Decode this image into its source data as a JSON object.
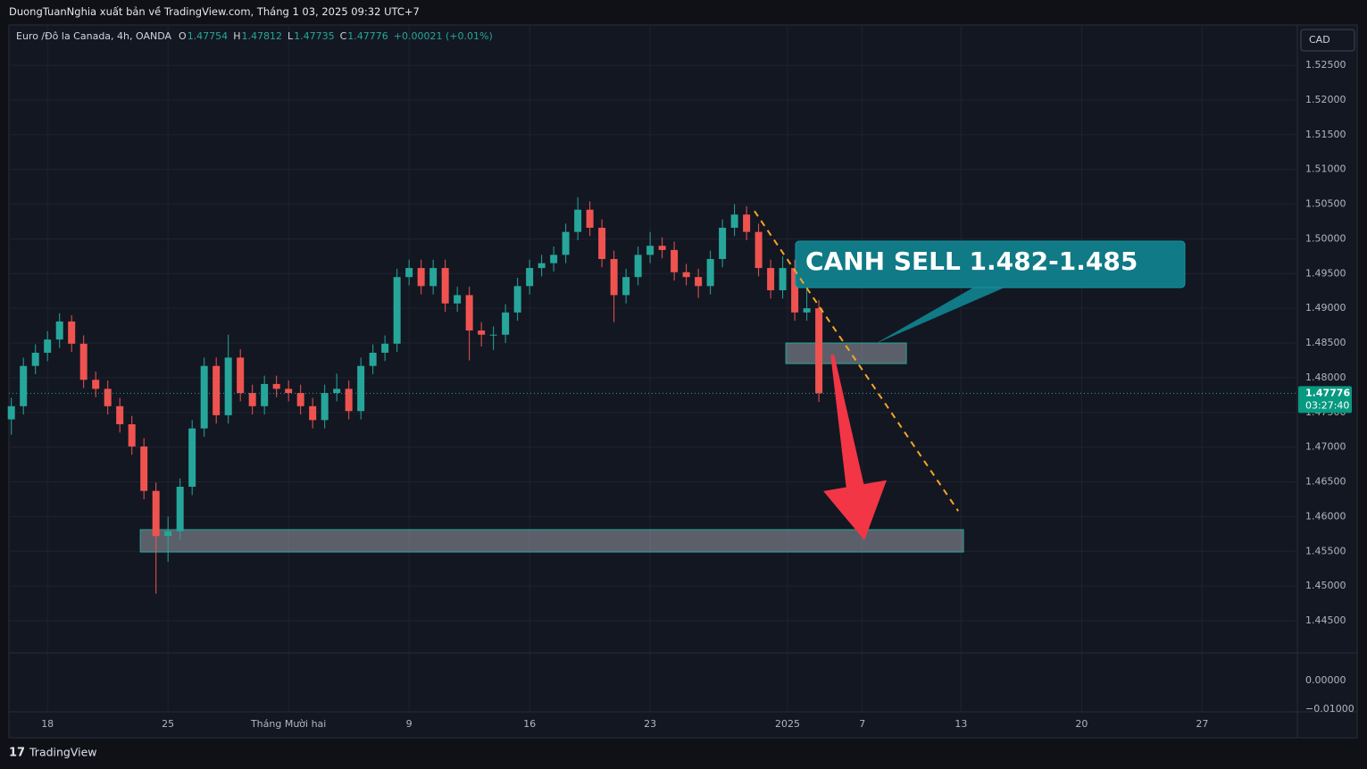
{
  "header": {
    "text": "DuongTuanNghia xuất bản về TradingView.com, Tháng 1 03, 2025 09:32 UTC+7"
  },
  "footer": {
    "brand": "TradingView"
  },
  "chart_data": {
    "type": "candlestick",
    "symbol": "Euro /Đô la Canada, 4h, OANDA",
    "ohlc_legend": [
      {
        "key": "O",
        "value": "1.47754"
      },
      {
        "key": "H",
        "value": "1.47812"
      },
      {
        "key": "L",
        "value": "1.47735"
      },
      {
        "key": "C",
        "value": "1.47776"
      }
    ],
    "change": "+0.00021 (+0.01%)",
    "currency": "CAD",
    "up_color": "#26a69a",
    "down_color": "#ef5350",
    "x": [
      -1.5,
      -1,
      -0.5,
      0,
      0.5,
      1,
      1.5,
      2,
      2.5,
      3,
      3.5,
      4,
      4.5,
      5,
      5.5,
      6,
      6.5,
      7,
      7.5,
      8,
      8.5,
      9,
      9.5,
      10,
      10.5,
      11,
      11.5,
      12,
      12.5,
      13,
      13.5,
      14,
      14.5,
      15,
      15.5,
      16,
      16.5,
      17,
      17.5,
      18,
      18.5,
      19,
      19.5,
      20,
      20.5,
      21,
      21.5,
      22,
      22.5,
      23,
      23.5,
      24,
      24.5,
      25,
      25.5,
      26,
      26.5,
      27,
      27.5,
      28,
      28.5,
      29,
      29.5,
      30,
      30.5,
      31,
      31.5,
      32
    ],
    "open": [
      1.474,
      1.4759,
      1.4817,
      1.4836,
      1.4855,
      1.4881,
      1.4849,
      1.4797,
      1.4784,
      1.4759,
      1.4733,
      1.4701,
      1.4637,
      1.4572,
      1.4579,
      1.4643,
      1.4727,
      1.4817,
      1.4746,
      1.4829,
      1.4778,
      1.4759,
      1.4791,
      1.4784,
      1.4778,
      1.4759,
      1.4739,
      1.4778,
      1.4784,
      1.4752,
      1.4817,
      1.4836,
      1.4849,
      1.4945,
      1.4958,
      1.4932,
      1.4958,
      1.4907,
      1.4919,
      1.4868,
      1.4862,
      1.4862,
      1.4894,
      1.4932,
      1.4958,
      1.4965,
      1.4977,
      1.501,
      1.5042,
      1.5016,
      1.4971,
      1.4919,
      1.4945,
      1.4977,
      1.499,
      1.4984,
      1.4952,
      1.4945,
      1.4932,
      1.4971,
      1.5016,
      1.5035,
      1.501,
      1.4958,
      1.4926,
      1.4958,
      1.4894,
      1.49
    ],
    "high": [
      1.4771,
      1.4829,
      1.4848,
      1.4867,
      1.4893,
      1.489,
      1.4861,
      1.4809,
      1.4796,
      1.4771,
      1.4745,
      1.4713,
      1.4649,
      1.46,
      1.4655,
      1.4739,
      1.4829,
      1.4829,
      1.4862,
      1.4841,
      1.479,
      1.4803,
      1.4803,
      1.4796,
      1.479,
      1.4771,
      1.479,
      1.4806,
      1.4796,
      1.4829,
      1.4848,
      1.4861,
      1.4957,
      1.497,
      1.497,
      1.497,
      1.497,
      1.4931,
      1.4931,
      1.488,
      1.4874,
      1.4906,
      1.4944,
      1.497,
      1.4977,
      1.4989,
      1.5022,
      1.506,
      1.5054,
      1.5028,
      1.4983,
      1.4957,
      1.4989,
      1.501,
      1.5002,
      1.4996,
      1.4964,
      1.4957,
      1.4983,
      1.5028,
      1.505,
      1.5047,
      1.5022,
      1.497,
      1.4975,
      1.497,
      1.4935,
      1.4912
    ],
    "low": [
      1.4718,
      1.4747,
      1.4805,
      1.4824,
      1.4843,
      1.4837,
      1.4785,
      1.4772,
      1.4747,
      1.4721,
      1.4689,
      1.4625,
      1.4489,
      1.4535,
      1.4567,
      1.4631,
      1.4715,
      1.4734,
      1.4734,
      1.4766,
      1.4747,
      1.4747,
      1.4772,
      1.4766,
      1.4747,
      1.4727,
      1.4727,
      1.4766,
      1.474,
      1.474,
      1.4805,
      1.4824,
      1.4837,
      1.4933,
      1.492,
      1.492,
      1.4895,
      1.4895,
      1.4825,
      1.4845,
      1.484,
      1.485,
      1.4882,
      1.492,
      1.4946,
      1.4953,
      1.4965,
      1.4998,
      1.5004,
      1.4959,
      1.488,
      1.4907,
      1.4933,
      1.4965,
      1.4972,
      1.494,
      1.4933,
      1.4915,
      1.492,
      1.4959,
      1.5004,
      1.4998,
      1.4946,
      1.4914,
      1.4914,
      1.4882,
      1.4882,
      1.4765
    ],
    "close": [
      1.4759,
      1.4817,
      1.4836,
      1.4855,
      1.4881,
      1.4849,
      1.4797,
      1.4784,
      1.4759,
      1.4733,
      1.4701,
      1.4637,
      1.4572,
      1.4579,
      1.4643,
      1.4727,
      1.4817,
      1.4746,
      1.4829,
      1.4778,
      1.4759,
      1.4791,
      1.4784,
      1.4778,
      1.4759,
      1.4739,
      1.4778,
      1.4784,
      1.4752,
      1.4817,
      1.4836,
      1.4849,
      1.4945,
      1.4958,
      1.4932,
      1.4958,
      1.4907,
      1.4919,
      1.4868,
      1.4862,
      1.4862,
      1.4894,
      1.4932,
      1.4958,
      1.4965,
      1.4977,
      1.501,
      1.5042,
      1.5016,
      1.4971,
      1.4919,
      1.4945,
      1.4977,
      1.499,
      1.4984,
      1.4952,
      1.4945,
      1.4932,
      1.4971,
      1.5016,
      1.5035,
      1.501,
      1.4958,
      1.4926,
      1.4958,
      1.4894,
      1.49,
      1.47776
    ],
    "xlim": [
      -1.6,
      51.85
    ],
    "xticks": [
      {
        "value": 0,
        "label": "18"
      },
      {
        "value": 5,
        "label": "25"
      },
      {
        "value": 10,
        "label": "Tháng Mười hai"
      },
      {
        "value": 15,
        "label": "9"
      },
      {
        "value": 20,
        "label": "16"
      },
      {
        "value": 25,
        "label": "23"
      },
      {
        "value": 30.7,
        "label": "2025"
      },
      {
        "value": 33.8,
        "label": "7"
      },
      {
        "value": 37.9,
        "label": "13"
      },
      {
        "value": 42.9,
        "label": "20"
      },
      {
        "value": 47.9,
        "label": "27"
      }
    ],
    "ylim": [
      1.4405,
      1.5308
    ],
    "yticks": [
      {
        "value": 1.525,
        "label": "1.52500"
      },
      {
        "value": 1.52,
        "label": "1.52000"
      },
      {
        "value": 1.515,
        "label": "1.51500"
      },
      {
        "value": 1.51,
        "label": "1.51000"
      },
      {
        "value": 1.505,
        "label": "1.50500"
      },
      {
        "value": 1.5,
        "label": "1.50000"
      },
      {
        "value": 1.495,
        "label": "1.49500"
      },
      {
        "value": 1.49,
        "label": "1.49000"
      },
      {
        "value": 1.485,
        "label": "1.48500"
      },
      {
        "value": 1.48,
        "label": "1.48000"
      },
      {
        "value": 1.475,
        "label": "1.47500"
      },
      {
        "value": 1.47,
        "label": "1.47000"
      },
      {
        "value": 1.465,
        "label": "1.46500"
      },
      {
        "value": 1.46,
        "label": "1.46000"
      },
      {
        "value": 1.455,
        "label": "1.45500"
      },
      {
        "value": 1.45,
        "label": "1.45000"
      },
      {
        "value": 1.445,
        "label": "1.44500"
      }
    ],
    "grid": true,
    "last_price": {
      "value": 1.47776,
      "label": "1.47776",
      "countdown": "03:27:40"
    },
    "lower_pane": {
      "ylim": [
        -0.0109,
        0.0094
      ],
      "yticks": [
        {
          "value": 0,
          "label": "0.00000"
        },
        {
          "value": -0.01,
          "label": "−0.01000"
        }
      ]
    },
    "zones": [
      {
        "x": [
          30.63,
          35.63
        ],
        "y": [
          1.48204,
          1.485
        ]
      },
      {
        "x": [
          3.85,
          38.0
        ],
        "y": [
          1.4549,
          1.45812
        ]
      }
    ],
    "trend_line": {
      "x": [
        29.33,
        37.78
      ],
      "y": [
        1.504,
        1.4608
      ],
      "color": "#f7a521"
    },
    "arrow": {
      "x": [
        32.56,
        33.89
      ],
      "y": [
        1.4833,
        1.4566
      ],
      "color": "#f23645"
    },
    "annotation": {
      "text": "CANH SELL 1.482-1.485"
    }
  }
}
